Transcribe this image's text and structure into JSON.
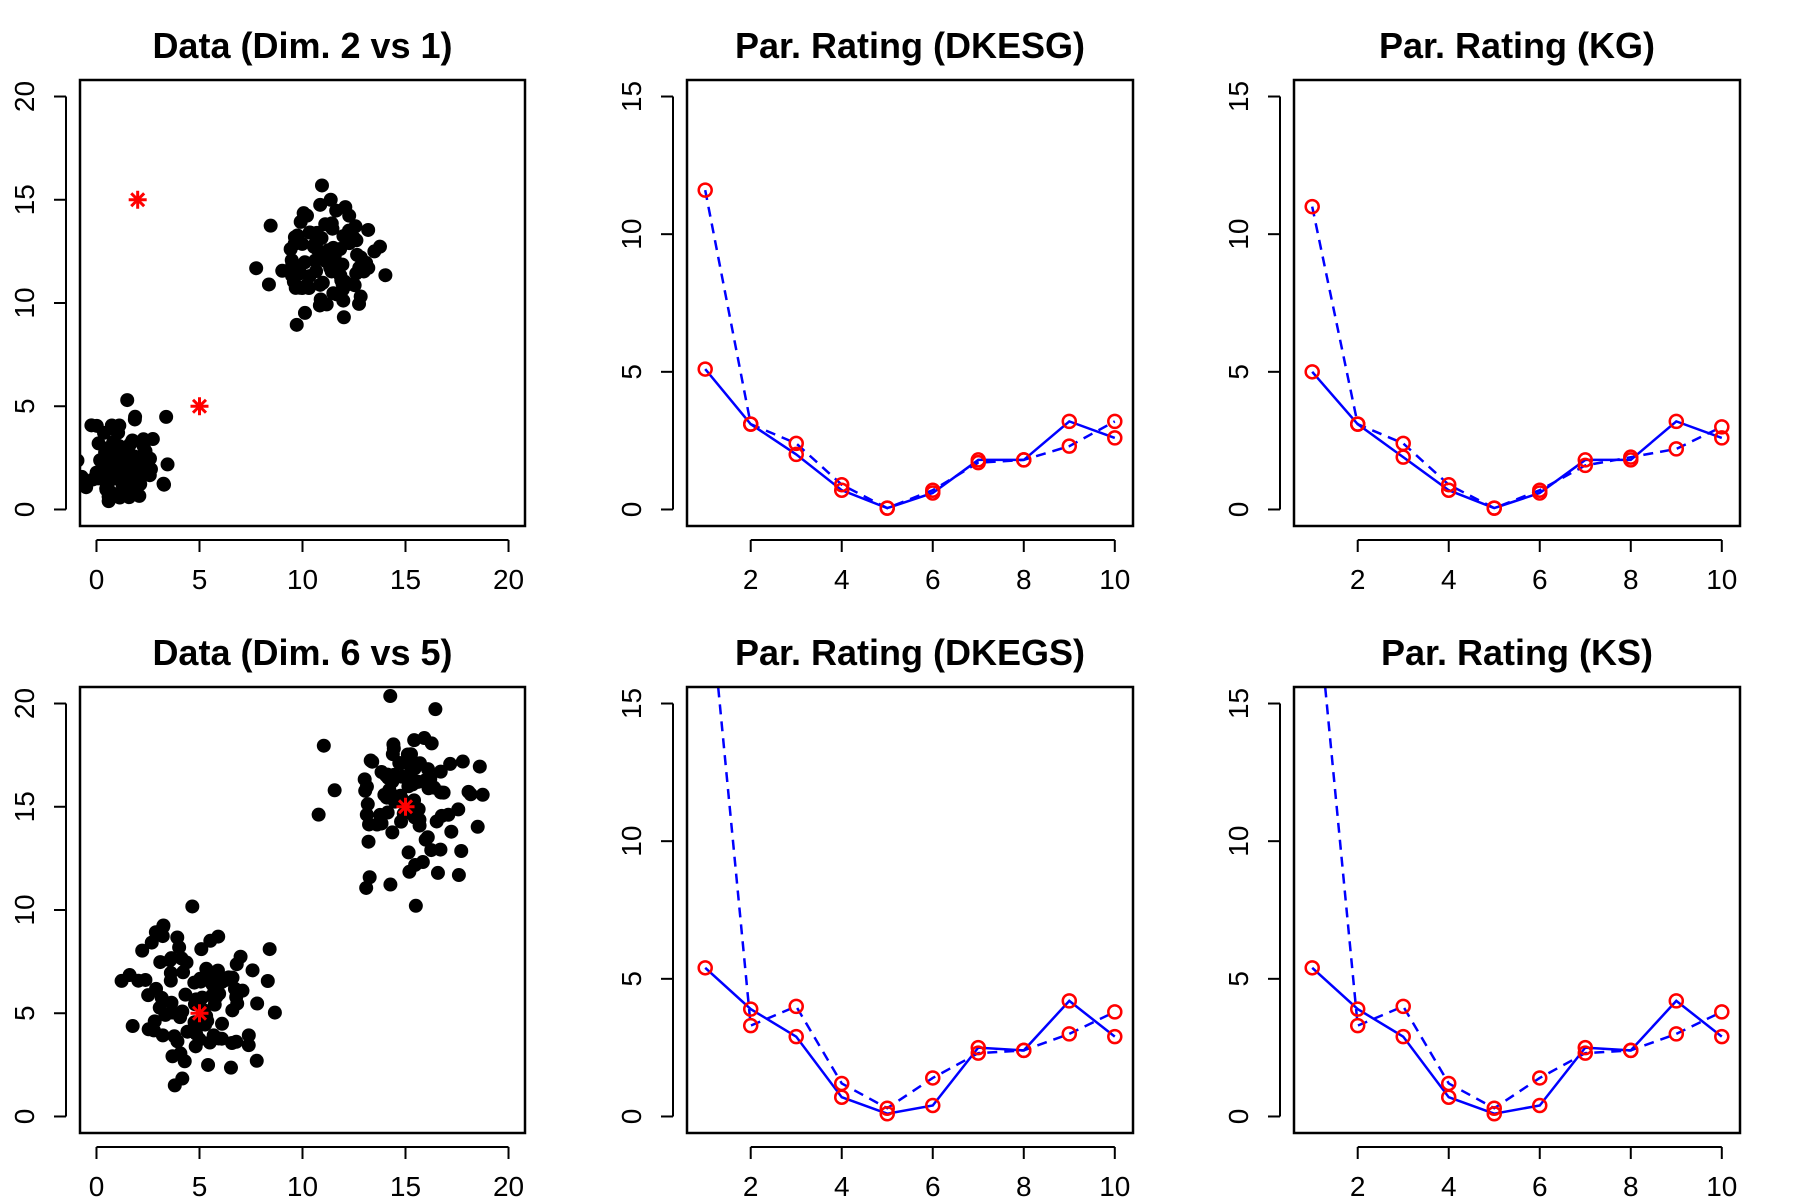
{
  "figure": {
    "background": "#ffffff"
  },
  "colors": {
    "points": "#000000",
    "centers": "#ff0000",
    "lines": "#0000ff",
    "markers": "#ff0000"
  },
  "chart_data": [
    {
      "type": "scatter",
      "title": "Data (Dim. 2 vs 1)",
      "xlabel": "",
      "ylabel": "",
      "xlim": [
        -0.8,
        20.8
      ],
      "ylim": [
        -0.8,
        20.8
      ],
      "xticks": [
        0,
        5,
        10,
        15,
        20
      ],
      "yticks": [
        0,
        5,
        10,
        15,
        20
      ],
      "clusters": [
        {
          "center": [
            1.3,
            2.3
          ],
          "spread": [
            0.9,
            1.1
          ],
          "n": 100,
          "seed": 11
        },
        {
          "center": [
            11.0,
            12.0
          ],
          "spread": [
            1.2,
            1.2
          ],
          "n": 100,
          "seed": 23
        }
      ],
      "centers": [
        [
          2,
          15
        ],
        [
          5,
          5
        ]
      ]
    },
    {
      "type": "line",
      "title": "Par. Rating (DKESG)",
      "xlabel": "",
      "ylabel": "",
      "xlim": [
        0.6,
        10.4
      ],
      "ylim": [
        -0.6,
        15.6
      ],
      "xticks": [
        2,
        4,
        6,
        8,
        10
      ],
      "yticks": [
        0,
        5,
        10,
        15
      ],
      "x": [
        1,
        2,
        3,
        4,
        5,
        6,
        7,
        8,
        9,
        10
      ],
      "series": [
        {
          "style": "solid",
          "values": [
            5.1,
            3.1,
            2.0,
            0.7,
            0.05,
            0.6,
            1.8,
            1.8,
            3.2,
            2.6
          ]
        },
        {
          "style": "dashed",
          "values": [
            11.6,
            3.1,
            2.4,
            0.9,
            0.05,
            0.7,
            1.7,
            1.8,
            2.3,
            3.2
          ]
        }
      ]
    },
    {
      "type": "line",
      "title": "Par. Rating (KG)",
      "xlabel": "",
      "ylabel": "",
      "xlim": [
        0.6,
        10.4
      ],
      "ylim": [
        -0.6,
        15.6
      ],
      "xticks": [
        2,
        4,
        6,
        8,
        10
      ],
      "yticks": [
        0,
        5,
        10,
        15
      ],
      "x": [
        1,
        2,
        3,
        4,
        5,
        6,
        7,
        8,
        9,
        10
      ],
      "series": [
        {
          "style": "solid",
          "values": [
            5.0,
            3.1,
            1.9,
            0.7,
            0.05,
            0.6,
            1.8,
            1.8,
            3.2,
            2.6
          ]
        },
        {
          "style": "dashed",
          "values": [
            11.0,
            3.1,
            2.4,
            0.9,
            0.05,
            0.7,
            1.6,
            1.9,
            2.2,
            3.0
          ]
        }
      ]
    },
    {
      "type": "scatter",
      "title": "Data (Dim. 6 vs 5)",
      "xlabel": "",
      "ylabel": "",
      "xlim": [
        -0.8,
        20.8
      ],
      "ylim": [
        -0.8,
        20.8
      ],
      "xticks": [
        0,
        5,
        10,
        15,
        20
      ],
      "yticks": [
        0,
        5,
        10,
        15,
        20
      ],
      "clusters": [
        {
          "center": [
            5.0,
            5.8
          ],
          "spread": [
            1.6,
            1.8
          ],
          "n": 100,
          "seed": 37
        },
        {
          "center": [
            15.3,
            15.6
          ],
          "spread": [
            1.7,
            1.9
          ],
          "n": 100,
          "seed": 53
        }
      ],
      "centers": [
        [
          5,
          5
        ],
        [
          15,
          15
        ]
      ]
    },
    {
      "type": "line",
      "title": "Par. Rating (DKEGS)",
      "xlabel": "",
      "ylabel": "",
      "xlim": [
        0.6,
        10.4
      ],
      "ylim": [
        -0.6,
        15.6
      ],
      "xticks": [
        2,
        4,
        6,
        8,
        10
      ],
      "yticks": [
        0,
        5,
        10,
        15
      ],
      "x": [
        1,
        2,
        3,
        4,
        5,
        6,
        7,
        8,
        9,
        10
      ],
      "series": [
        {
          "style": "solid",
          "values": [
            5.4,
            3.9,
            2.9,
            0.7,
            0.1,
            0.4,
            2.5,
            2.4,
            4.2,
            2.9
          ]
        },
        {
          "style": "dashed",
          "values": [
            20.5,
            3.3,
            4.0,
            1.2,
            0.3,
            1.4,
            2.3,
            2.4,
            3.0,
            3.8
          ]
        }
      ]
    },
    {
      "type": "line",
      "title": "Par. Rating (KS)",
      "xlabel": "",
      "ylabel": "",
      "xlim": [
        0.6,
        10.4
      ],
      "ylim": [
        -0.6,
        15.6
      ],
      "xticks": [
        2,
        4,
        6,
        8,
        10
      ],
      "yticks": [
        0,
        5,
        10,
        15
      ],
      "x": [
        1,
        2,
        3,
        4,
        5,
        6,
        7,
        8,
        9,
        10
      ],
      "series": [
        {
          "style": "solid",
          "values": [
            5.4,
            3.9,
            2.9,
            0.7,
            0.1,
            0.4,
            2.5,
            2.4,
            4.2,
            2.9
          ]
        },
        {
          "style": "dashed",
          "values": [
            20.5,
            3.3,
            4.0,
            1.2,
            0.3,
            1.4,
            2.3,
            2.4,
            3.0,
            3.8
          ]
        }
      ]
    }
  ]
}
